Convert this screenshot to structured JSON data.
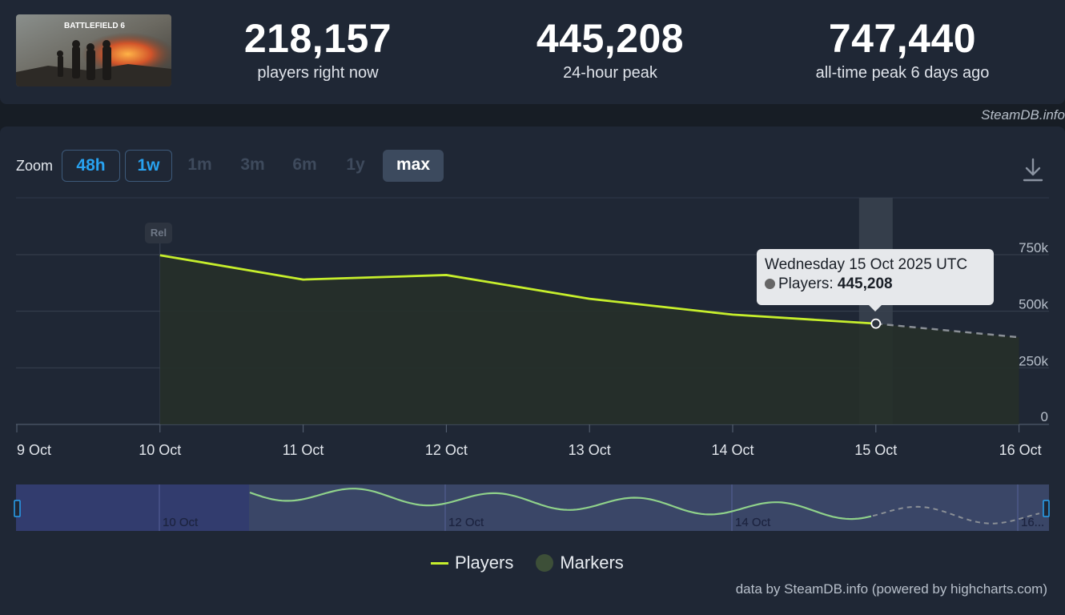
{
  "header": {
    "game_thumbnail_title": "BATTLEFIELD 6",
    "stats": [
      {
        "value": "218,157",
        "label": "players right now"
      },
      {
        "value": "445,208",
        "label": "24-hour peak"
      },
      {
        "value": "747,440",
        "label": "all-time peak 6 days ago"
      }
    ],
    "credit": "SteamDB.info"
  },
  "zoom": {
    "label": "Zoom",
    "buttons": [
      {
        "label": "48h",
        "state": "active"
      },
      {
        "label": "1w",
        "state": "active"
      },
      {
        "label": "1m",
        "state": "disabled"
      },
      {
        "label": "3m",
        "state": "disabled"
      },
      {
        "label": "6m",
        "state": "disabled"
      },
      {
        "label": "1y",
        "state": "disabled"
      },
      {
        "label": "max",
        "state": "selected"
      }
    ]
  },
  "tooltip": {
    "title": "Wednesday 15 Oct 2025 UTC",
    "series_label": "Players:",
    "value": "445,208"
  },
  "marker_label": "Rel",
  "legend": {
    "players": "Players",
    "markers": "Markers"
  },
  "footer_credit": "data by SteamDB.info (powered by highcharts.com)",
  "colors": {
    "line": "#c6ee2c",
    "navigator_line": "#8fd18a",
    "accent": "#28a2f0"
  },
  "chart_data": {
    "type": "line",
    "x_categories": [
      "9 Oct",
      "10 Oct",
      "11 Oct",
      "12 Oct",
      "13 Oct",
      "14 Oct",
      "15 Oct",
      "16 Oct"
    ],
    "series": [
      {
        "name": "Players",
        "points": [
          {
            "x": "10 Oct",
            "y": 747440
          },
          {
            "x": "11 Oct",
            "y": 640000
          },
          {
            "x": "12 Oct",
            "y": 660000
          },
          {
            "x": "13 Oct",
            "y": 555000
          },
          {
            "x": "14 Oct",
            "y": 485000
          },
          {
            "x": "15 Oct",
            "y": 445208
          }
        ],
        "projected": [
          {
            "x": "15 Oct",
            "y": 445208
          },
          {
            "x": "16 Oct",
            "y": 385000
          }
        ]
      }
    ],
    "y_ticks": [
      "0",
      "250k",
      "500k",
      "750k"
    ],
    "ylim": [
      0,
      1000000
    ],
    "grid": true,
    "navigator": {
      "labels": [
        "10 Oct",
        "12 Oct",
        "14 Oct",
        "16..."
      ]
    }
  }
}
